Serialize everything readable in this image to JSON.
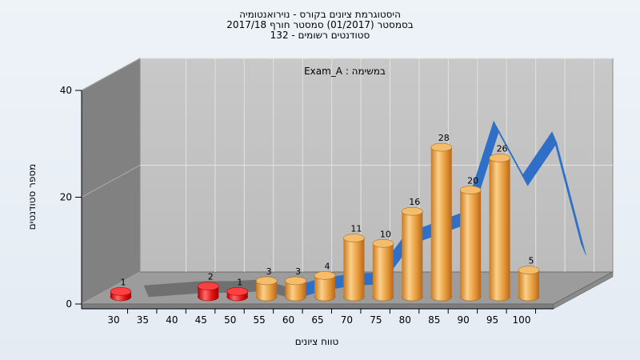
{
  "chart_data": {
    "type": "bar",
    "title_lines": [
      "היסטוגרמת ציונים בקורס - נוירואנטומיה",
      "בסמסטר  (01/2017)  סמסטר חורף 2017/18",
      "סטודנטים רשומים - 132"
    ],
    "subtitle": "Exam_A : במשימה",
    "xlabel": "טווח ציונים",
    "ylabel": "מספר סטודנטים",
    "x_ticks": [
      "30",
      "35",
      "40",
      "45",
      "50",
      "55",
      "60",
      "65",
      "70",
      "75",
      "80",
      "85",
      "90",
      "95",
      "100"
    ],
    "y_ticks": [
      0,
      20,
      40
    ],
    "ylim": [
      0,
      40
    ],
    "grid": true,
    "bars": [
      {
        "x": 30,
        "value": 1,
        "color": "#e01010"
      },
      {
        "x": 45,
        "value": 2,
        "color": "#e01010"
      },
      {
        "x": 50,
        "value": 1,
        "color": "#e01010"
      },
      {
        "x": 55,
        "value": 3,
        "color": "#e6a040"
      },
      {
        "x": 60,
        "value": 3,
        "color": "#e6a040"
      },
      {
        "x": 65,
        "value": 4,
        "color": "#e6a040"
      },
      {
        "x": 70,
        "value": 11,
        "color": "#e6a040"
      },
      {
        "x": 75,
        "value": 10,
        "color": "#e6a040"
      },
      {
        "x": 80,
        "value": 16,
        "color": "#e6a040"
      },
      {
        "x": 85,
        "value": 28,
        "color": "#e6a040"
      },
      {
        "x": 90,
        "value": 20,
        "color": "#e6a040"
      },
      {
        "x": 95,
        "value": 26,
        "color": "#e6a040"
      },
      {
        "x": 100,
        "value": 5,
        "color": "#e6a040"
      }
    ],
    "trend_ribbon": {
      "grey_color": "#707070",
      "blue_color": "#2f6fc8",
      "points": [
        {
          "x": 30,
          "y": 1.2,
          "c": "grey"
        },
        {
          "x": 35,
          "y": 1.6,
          "c": "grey"
        },
        {
          "x": 40,
          "y": 2.0,
          "c": "grey"
        },
        {
          "x": 45,
          "y": 2.0,
          "c": "grey"
        },
        {
          "x": 50,
          "y": 2.3,
          "c": "grey"
        },
        {
          "x": 55,
          "y": 0.8,
          "c": "blue"
        },
        {
          "x": 60,
          "y": 2.4,
          "c": "blue"
        },
        {
          "x": 65,
          "y": 3.3,
          "c": "blue"
        },
        {
          "x": 70,
          "y": 3.6,
          "c": "blue"
        },
        {
          "x": 75,
          "y": 11,
          "c": "blue"
        },
        {
          "x": 80,
          "y": 13,
          "c": "blue"
        },
        {
          "x": 85,
          "y": 15,
          "c": "blue"
        },
        {
          "x": 90,
          "y": 32,
          "c": "blue"
        },
        {
          "x": 95,
          "y": 22,
          "c": "blue"
        },
        {
          "x": 100,
          "y": 30,
          "c": "blue"
        },
        {
          "x": 105,
          "y": 9,
          "c": "blue"
        }
      ]
    },
    "colors": {
      "back_wall": "#c2c2c2",
      "side_wall": "#808080",
      "floor": "#9a9a9a",
      "grid_line": "#e2e2e2"
    }
  }
}
